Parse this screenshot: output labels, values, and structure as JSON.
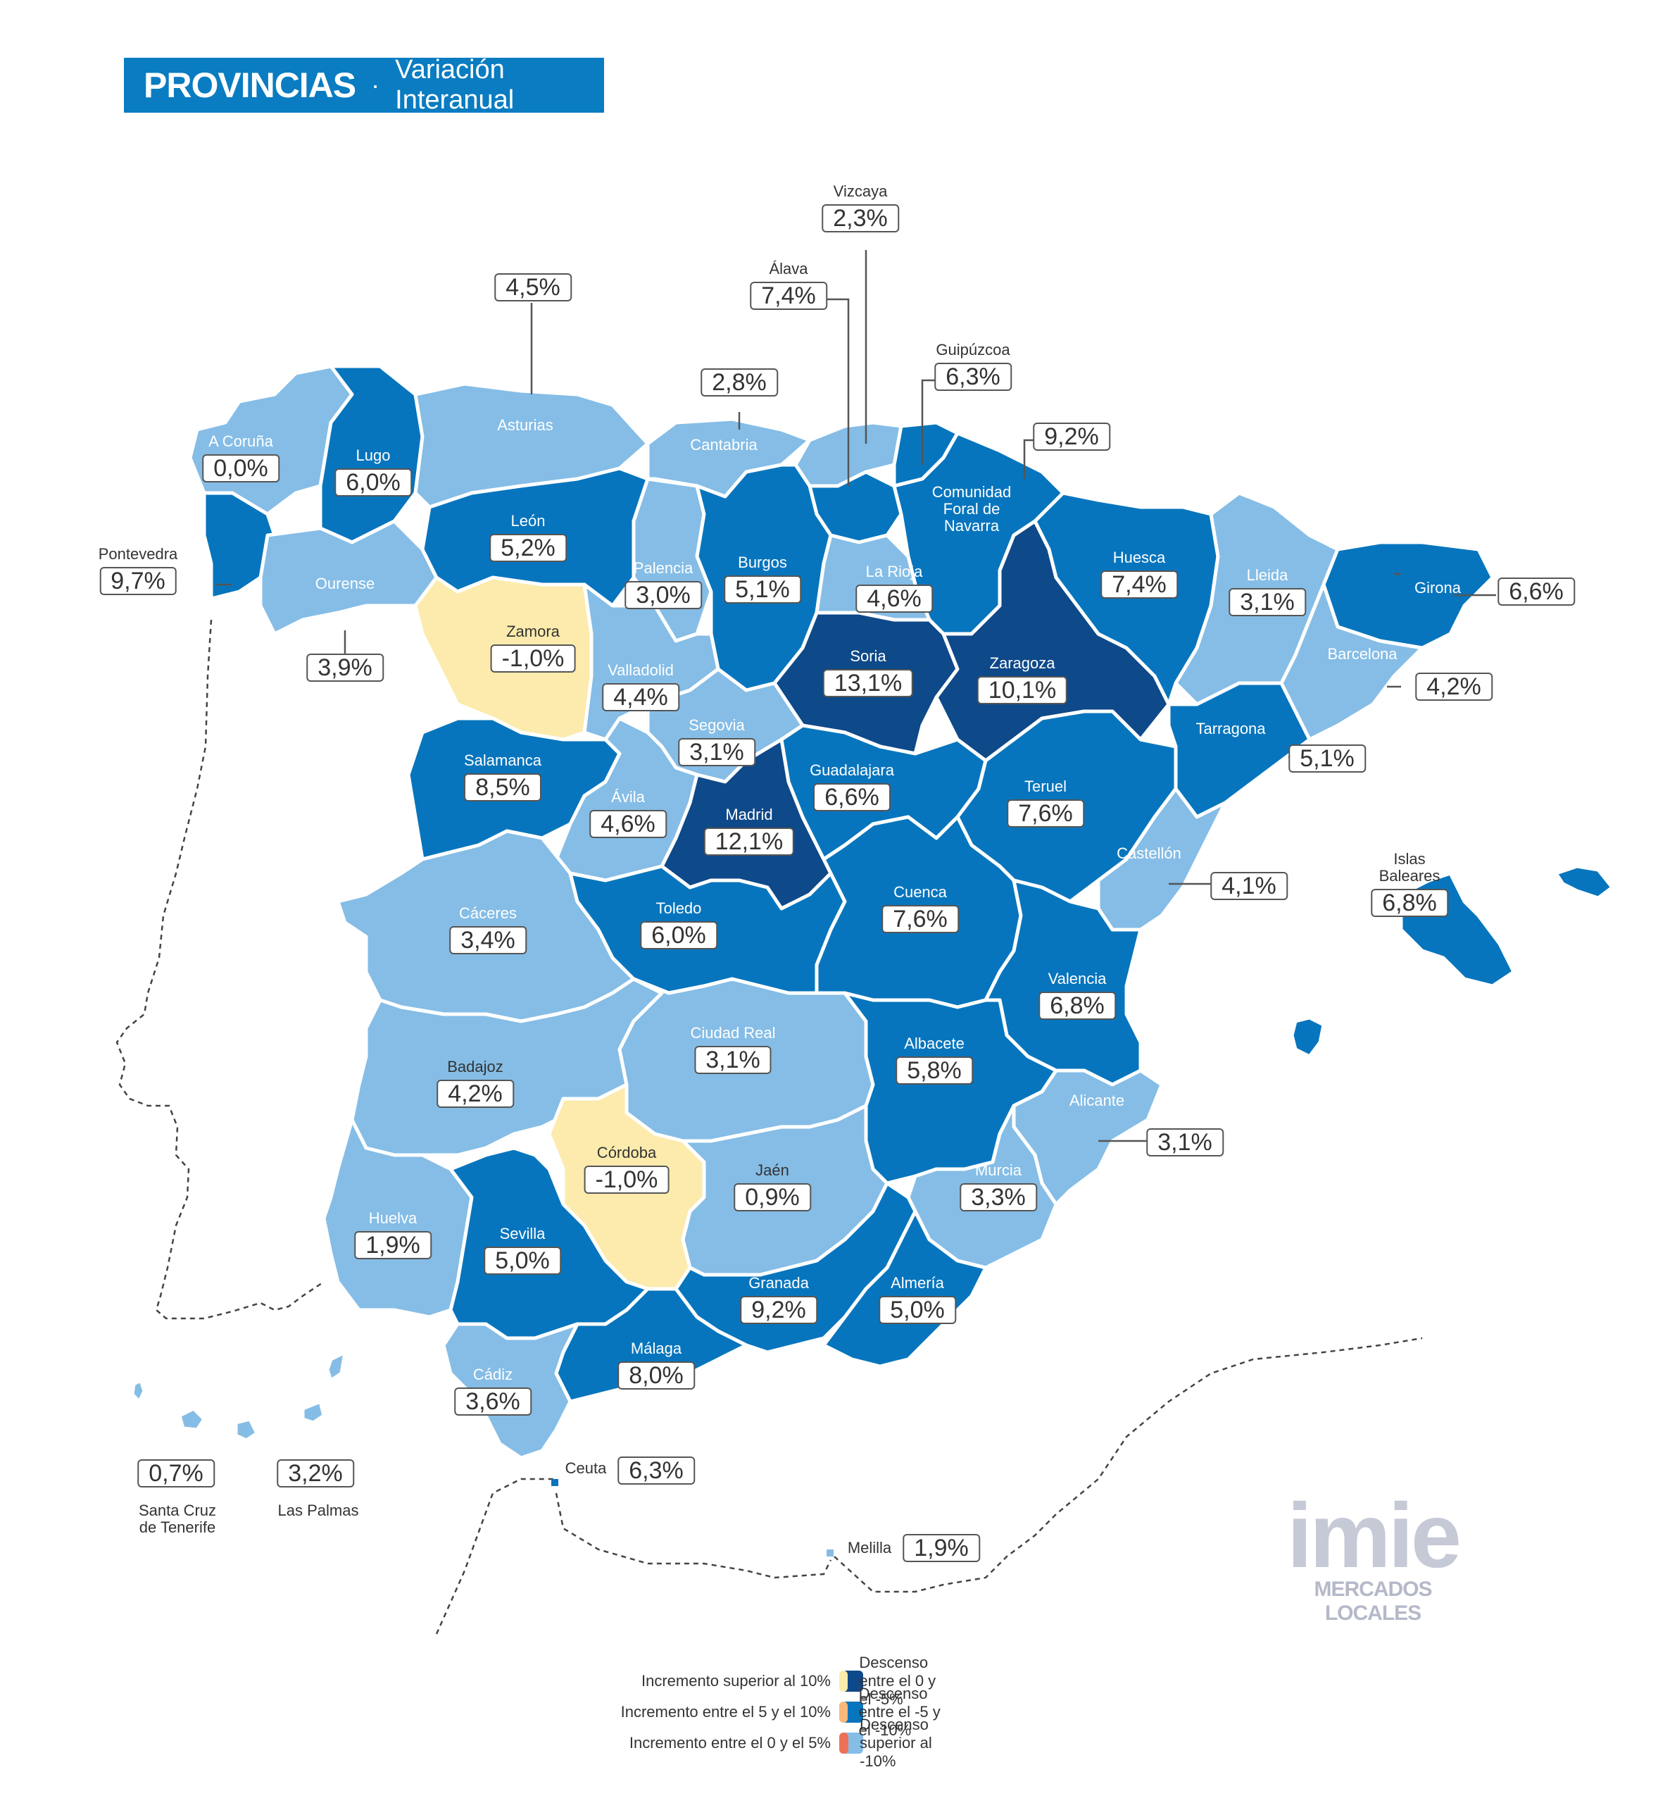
{
  "header": {
    "title": "PROVINCIAS",
    "separator": "·",
    "subtitle": "Variación Interanual"
  },
  "colors": {
    "dark": "#0e4989",
    "mid": "#0775bd",
    "light": "#85bde6",
    "yellow": "#fcebac",
    "orange": "#f7b87a",
    "red": "#ee7157",
    "outline": "#ffffff"
  },
  "provinces": [
    {
      "name": "A Coruña",
      "value": "0,0%",
      "class": "light"
    },
    {
      "name": "Lugo",
      "value": "6,0%",
      "class": "mid"
    },
    {
      "name": "Asturias",
      "value": "4,5%",
      "class": "light"
    },
    {
      "name": "Cantabria",
      "value": "2,8%",
      "class": "light"
    },
    {
      "name": "Vizcaya",
      "value": "2,3%",
      "class": "light"
    },
    {
      "name": "Álava",
      "value": "7,4%",
      "class": "mid"
    },
    {
      "name": "Guipúzcoa",
      "value": "6,3%",
      "class": "mid"
    },
    {
      "name": "Comunidad\nForal de\nNavarra",
      "value": "9,2%",
      "class": "mid"
    },
    {
      "name": "Pontevedra",
      "value": "9,7%",
      "class": "mid"
    },
    {
      "name": "Ourense",
      "value": "3,9%",
      "class": "light"
    },
    {
      "name": "León",
      "value": "5,2%",
      "class": "mid"
    },
    {
      "name": "Palencia",
      "value": "3,0%",
      "class": "light"
    },
    {
      "name": "Burgos",
      "value": "5,1%",
      "class": "mid"
    },
    {
      "name": "La Rioja",
      "value": "4,6%",
      "class": "light"
    },
    {
      "name": "Huesca",
      "value": "7,4%",
      "class": "mid"
    },
    {
      "name": "Lleida",
      "value": "3,1%",
      "class": "light"
    },
    {
      "name": "Girona",
      "value": "6,6%",
      "class": "mid"
    },
    {
      "name": "Zamora",
      "value": "-1,0%",
      "class": "yellow"
    },
    {
      "name": "Valladolid",
      "value": "4,4%",
      "class": "light"
    },
    {
      "name": "Soria",
      "value": "13,1%",
      "class": "dark"
    },
    {
      "name": "Zaragoza",
      "value": "10,1%",
      "class": "dark"
    },
    {
      "name": "Barcelona",
      "value": "4,2%",
      "class": "light"
    },
    {
      "name": "Segovia",
      "value": "3,1%",
      "class": "light"
    },
    {
      "name": "Salamanca",
      "value": "8,5%",
      "class": "mid"
    },
    {
      "name": "Guadalajara",
      "value": "6,6%",
      "class": "mid"
    },
    {
      "name": "Teruel",
      "value": "7,6%",
      "class": "mid"
    },
    {
      "name": "Tarragona",
      "value": "5,1%",
      "class": "mid"
    },
    {
      "name": "Ávila",
      "value": "4,6%",
      "class": "light"
    },
    {
      "name": "Madrid",
      "value": "12,1%",
      "class": "dark"
    },
    {
      "name": "Castellón",
      "value": "4,1%",
      "class": "light"
    },
    {
      "name": "Islas\nBaleares",
      "value": "6,8%",
      "class": "mid"
    },
    {
      "name": "Cáceres",
      "value": "3,4%",
      "class": "light"
    },
    {
      "name": "Toledo",
      "value": "6,0%",
      "class": "mid"
    },
    {
      "name": "Cuenca",
      "value": "7,6%",
      "class": "mid"
    },
    {
      "name": "Valencia",
      "value": "6,8%",
      "class": "mid"
    },
    {
      "name": "Ciudad Real",
      "value": "3,1%",
      "class": "light"
    },
    {
      "name": "Albacete",
      "value": "5,8%",
      "class": "mid"
    },
    {
      "name": "Badajoz",
      "value": "4,2%",
      "class": "light"
    },
    {
      "name": "Alicante",
      "value": "3,1%",
      "class": "light"
    },
    {
      "name": "Córdoba",
      "value": "-1,0%",
      "class": "yellow"
    },
    {
      "name": "Jaén",
      "value": "0,9%",
      "class": "light"
    },
    {
      "name": "Murcia",
      "value": "3,3%",
      "class": "light"
    },
    {
      "name": "Huelva",
      "value": "1,9%",
      "class": "light"
    },
    {
      "name": "Sevilla",
      "value": "5,0%",
      "class": "mid"
    },
    {
      "name": "Granada",
      "value": "9,2%",
      "class": "mid"
    },
    {
      "name": "Almería",
      "value": "5,0%",
      "class": "mid"
    },
    {
      "name": "Málaga",
      "value": "8,0%",
      "class": "mid"
    },
    {
      "name": "Cádiz",
      "value": "3,6%",
      "class": "light"
    },
    {
      "name": "Ceuta",
      "value": "6,3%",
      "class": "mid"
    },
    {
      "name": "Melilla",
      "value": "1,9%",
      "class": "light"
    },
    {
      "name": "Santa Cruz\nde Tenerife",
      "value": "0,7%",
      "class": "light"
    },
    {
      "name": "Las Palmas",
      "value": "3,2%",
      "class": "light"
    }
  ],
  "legend": [
    {
      "label": "Incremento superior al 10%",
      "class": "dark"
    },
    {
      "label": "Incremento entre el 5 y el 10%",
      "class": "mid"
    },
    {
      "label": "Incremento entre el 0 y el 5%",
      "class": "light"
    },
    {
      "label": "Descenso entre el 0 y el -5%",
      "class": "yellow"
    },
    {
      "label": "Descenso entre el -5 y el -10%",
      "class": "orange"
    },
    {
      "label": "Descenso superior al -10%",
      "class": "red"
    }
  ],
  "logo": {
    "brand": "imie",
    "tagline": "MERCADOS LOCALES"
  }
}
